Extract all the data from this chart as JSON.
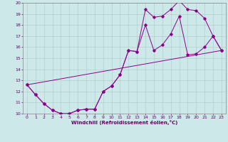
{
  "xlabel": "Windchill (Refroidissement éolien,°C)",
  "bg_color": "#cce8e8",
  "line_color": "#8b008b",
  "grid_color": "#b0c8c8",
  "xlim": [
    -0.5,
    23.5
  ],
  "ylim": [
    10,
    20
  ],
  "yticks": [
    10,
    11,
    12,
    13,
    14,
    15,
    16,
    17,
    18,
    19,
    20
  ],
  "xticks": [
    0,
    1,
    2,
    3,
    4,
    5,
    6,
    7,
    8,
    9,
    10,
    11,
    12,
    13,
    14,
    15,
    16,
    17,
    18,
    19,
    20,
    21,
    22,
    23
  ],
  "series1_x": [
    0,
    1,
    2,
    3,
    4,
    5,
    6,
    7,
    8,
    9,
    10,
    11,
    12,
    13,
    14,
    15,
    16,
    17,
    18,
    19,
    20,
    21,
    22,
    23
  ],
  "series1_y": [
    12.6,
    11.7,
    10.9,
    10.3,
    10.0,
    10.0,
    10.3,
    10.4,
    10.4,
    12.0,
    12.5,
    13.5,
    15.7,
    15.6,
    19.4,
    18.7,
    18.8,
    19.4,
    20.2,
    19.4,
    19.3,
    18.6,
    17.0,
    15.7
  ],
  "series2_x": [
    0,
    1,
    2,
    3,
    4,
    5,
    6,
    7,
    8,
    9,
    10,
    11,
    12,
    13,
    14,
    15,
    16,
    17,
    18,
    19,
    20,
    21,
    22,
    23
  ],
  "series2_y": [
    12.6,
    11.7,
    10.9,
    10.3,
    10.0,
    10.0,
    10.3,
    10.4,
    10.4,
    12.0,
    12.5,
    13.5,
    15.7,
    15.6,
    18.0,
    15.7,
    16.2,
    17.2,
    18.8,
    15.3,
    15.4,
    16.0,
    17.0,
    15.7
  ],
  "series3_x": [
    0,
    23
  ],
  "series3_y": [
    12.6,
    15.7
  ]
}
